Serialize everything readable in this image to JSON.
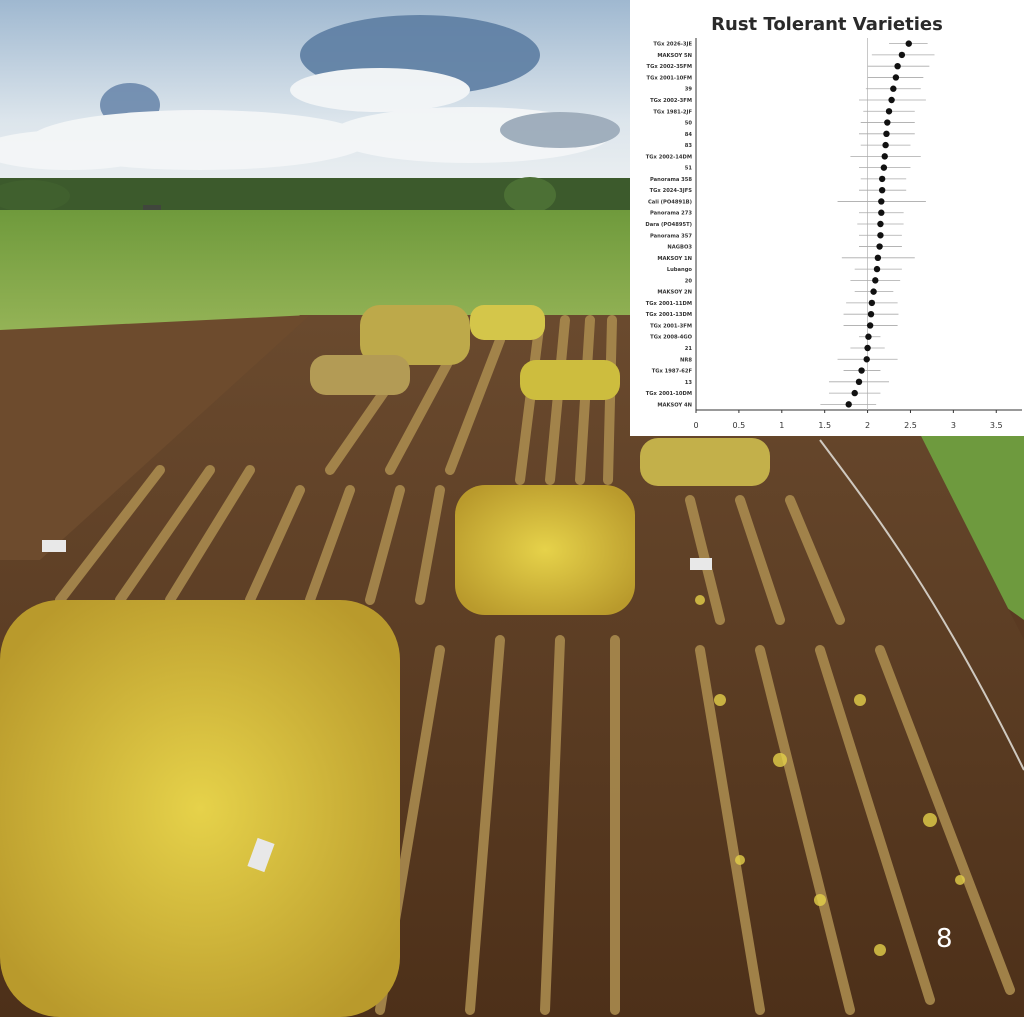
{
  "photo": {
    "description_icon": "soybean-field-photo",
    "colors": {
      "sky": "#c9d8e6",
      "cloud": "#f3f5f6",
      "grass": "#86a84a",
      "soil": "#5b3b22",
      "crop_yellow": "#d8c13a",
      "crop_dry": "#a88a4a"
    }
  },
  "page_number": "8",
  "chart_data": {
    "type": "scatter",
    "title": "Rust Tolerant Varieties",
    "xlabel": "",
    "ylabel": "",
    "xlim": [
      0,
      3.8
    ],
    "x_ticks": [
      "0",
      "0.5",
      "1",
      "1.5",
      "2",
      "2.5",
      "3",
      "3.5"
    ],
    "grid": false,
    "marker_color": "#111111",
    "categories": [
      "TGx 2026-3JE",
      "MAKSOY 5N",
      "TGx 2002-35FM",
      "TGx 2001-10FM",
      "39",
      "TGx 2002-3FM",
      "TGx 1981-2JF",
      "50",
      "84",
      "83",
      "TGx 2002-14DM",
      "51",
      "Panorama 358",
      "TGx 2024-3JFS",
      "Cali (PO4891B)",
      "Panorama 273",
      "Dara (PO4895T)",
      "Panorama 357",
      "NAGBO3",
      "MAKSOY 1N",
      "Lubango",
      "20",
      "MAKSOY 2N",
      "TGx 2001-11DM",
      "TGx 2001-13DM",
      "TGx 2001-3FM",
      "TGx 2008-4GO",
      "21",
      "NR8",
      "TGx 1987-62F",
      "13",
      "TGx 2001-10DM",
      "MAKSOY 4N"
    ],
    "values": [
      2.48,
      2.4,
      2.35,
      2.33,
      2.3,
      2.28,
      2.25,
      2.23,
      2.22,
      2.21,
      2.2,
      2.19,
      2.17,
      2.17,
      2.16,
      2.16,
      2.15,
      2.15,
      2.14,
      2.12,
      2.11,
      2.09,
      2.07,
      2.05,
      2.04,
      2.03,
      2.01,
      2.0,
      1.99,
      1.93,
      1.9,
      1.85,
      1.78
    ],
    "error_low": [
      2.25,
      2.05,
      2.0,
      2.0,
      1.98,
      1.9,
      1.95,
      1.92,
      1.9,
      1.92,
      1.8,
      1.9,
      1.92,
      1.9,
      1.65,
      1.9,
      1.88,
      1.9,
      1.9,
      1.7,
      1.85,
      1.8,
      1.85,
      1.75,
      1.72,
      1.72,
      1.9,
      1.8,
      1.65,
      1.72,
      1.55,
      1.55,
      1.45
    ],
    "error_high": [
      2.7,
      2.78,
      2.72,
      2.65,
      2.62,
      2.68,
      2.55,
      2.55,
      2.55,
      2.5,
      2.62,
      2.5,
      2.45,
      2.45,
      2.68,
      2.42,
      2.42,
      2.4,
      2.4,
      2.55,
      2.4,
      2.38,
      2.3,
      2.35,
      2.36,
      2.35,
      2.15,
      2.2,
      2.35,
      2.15,
      2.25,
      2.15,
      2.1
    ]
  }
}
